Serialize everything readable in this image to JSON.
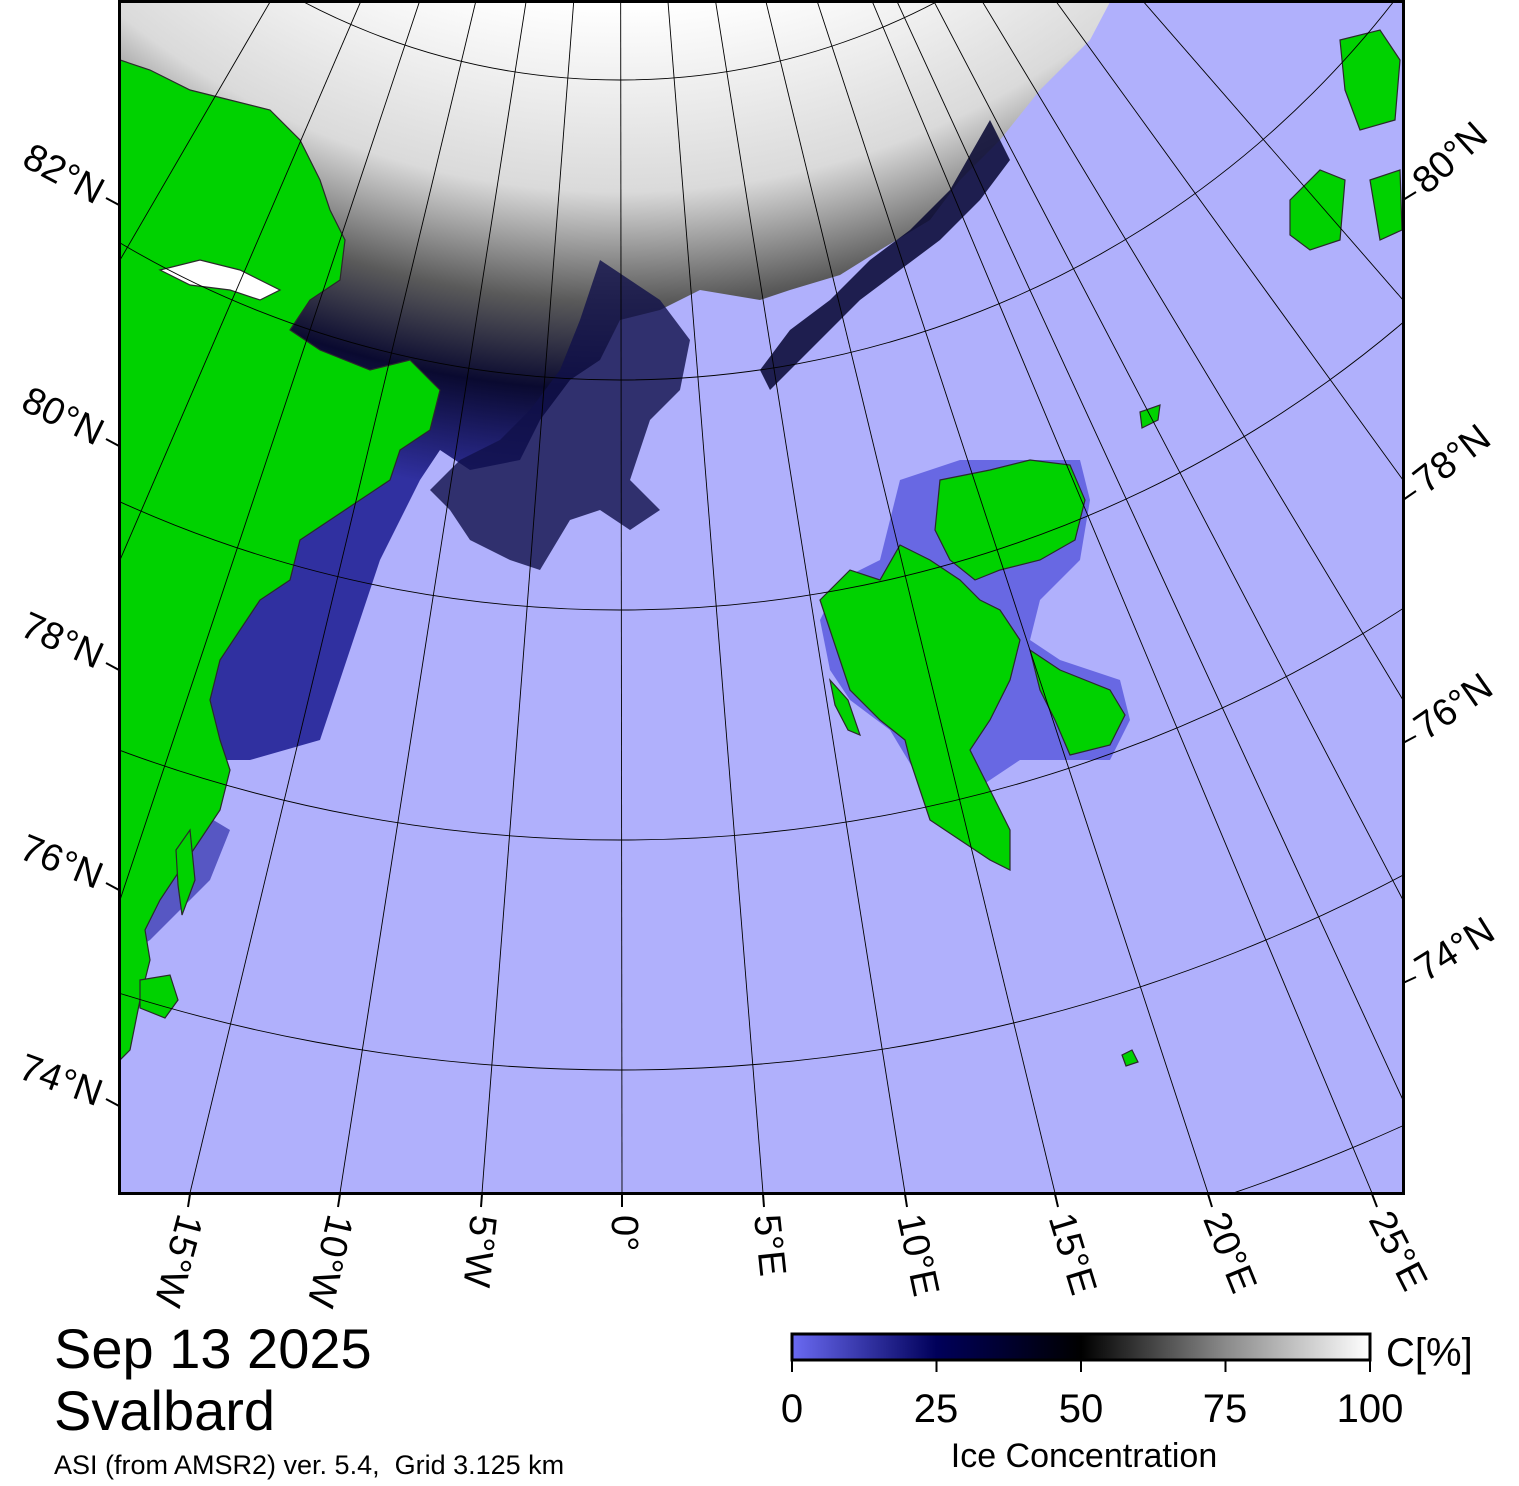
{
  "map": {
    "date": "Sep 13 2025",
    "region": "Svalbard",
    "product": "ASI (from AMSR2) ver. 5.4,  Grid 3.125 km",
    "graticule": {
      "longitude_labels": [
        "15°W",
        "10°W",
        "5°W",
        "0°",
        "5°E",
        "10°E",
        "15°E",
        "20°E",
        "25°E"
      ],
      "latitude_labels_left": [
        "82°N",
        "80°N",
        "78°N",
        "76°N",
        "74°N"
      ],
      "latitude_labels_right": [
        "80°N",
        "78°N",
        "76°N",
        "74°N"
      ]
    },
    "colorbar": {
      "ticks": [
        "0",
        "25",
        "50",
        "75",
        "100"
      ],
      "unit": "C[%]",
      "title": "Ice Concentration"
    },
    "colors": {
      "open_water": "#b0b0fc",
      "land": "#00d200",
      "ice_full": "#ffffff",
      "ice_mid": "#000000",
      "ice_low": "#00005a",
      "ice_min": "#6a6af2"
    },
    "landmasses": [
      "Greenland",
      "Svalbard",
      "Franz Josef Land",
      "Bjørnøya",
      "Kvitøya"
    ]
  }
}
